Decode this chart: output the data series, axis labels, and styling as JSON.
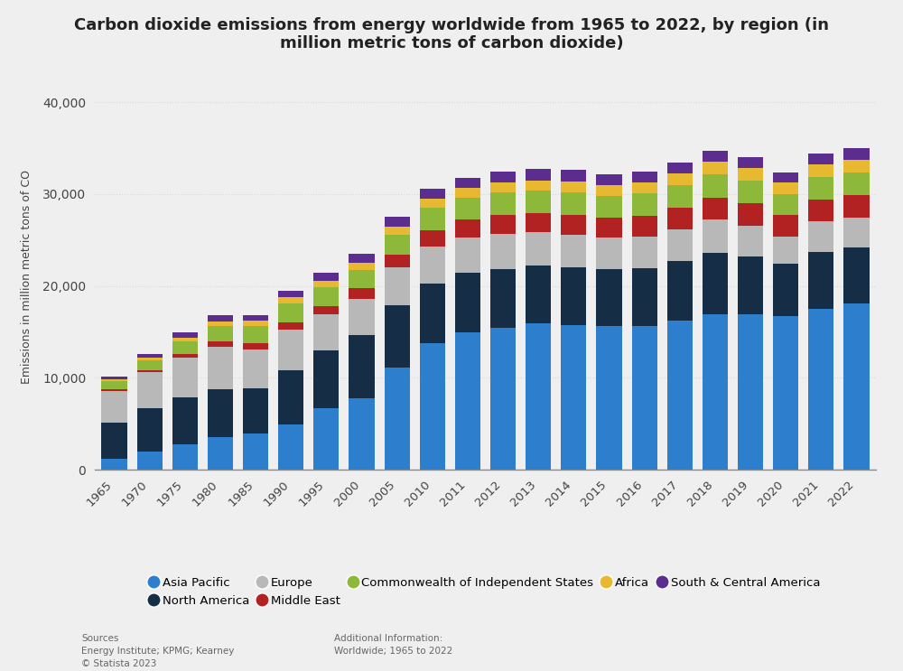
{
  "title": "Carbon dioxide emissions from energy worldwide from 1965 to 2022, by region (in\nmillion metric tons of carbon dioxide)",
  "ylabel": "Emissions in million metric tons of CO",
  "years": [
    1965,
    1970,
    1975,
    1980,
    1985,
    1990,
    1995,
    2000,
    2005,
    2010,
    2011,
    2012,
    2013,
    2014,
    2015,
    2016,
    2017,
    2018,
    2019,
    2020,
    2021,
    2022
  ],
  "regions": [
    "Asia Pacific",
    "North America",
    "Europe",
    "Middle East",
    "Commonwealth of Independent States",
    "Africa",
    "South & Central America"
  ],
  "colors": [
    "#2e7ece",
    "#162d46",
    "#b8b8b8",
    "#b22222",
    "#8db83a",
    "#e8b830",
    "#5b2d8e"
  ],
  "data": {
    "Asia Pacific": [
      1200,
      2000,
      2800,
      3500,
      3900,
      4900,
      6700,
      7800,
      11100,
      13800,
      15000,
      15400,
      15900,
      15700,
      15600,
      15600,
      16200,
      16900,
      16900,
      16700,
      17500,
      18100
    ],
    "North America": [
      3900,
      4700,
      5100,
      5300,
      5000,
      5900,
      6300,
      6900,
      6800,
      6500,
      6400,
      6400,
      6300,
      6300,
      6200,
      6300,
      6500,
      6700,
      6300,
      5700,
      6200,
      6100
    ],
    "Europe": [
      3500,
      3900,
      4300,
      4600,
      4200,
      4400,
      3900,
      3900,
      4100,
      4000,
      3900,
      3900,
      3700,
      3600,
      3500,
      3500,
      3500,
      3600,
      3400,
      3000,
      3300,
      3200
    ],
    "Middle East": [
      150,
      250,
      400,
      550,
      650,
      800,
      950,
      1150,
      1400,
      1800,
      1900,
      2000,
      2000,
      2100,
      2100,
      2200,
      2300,
      2400,
      2400,
      2300,
      2400,
      2500
    ],
    "Commonwealth of Independent States": [
      900,
      1100,
      1400,
      1700,
      1900,
      2100,
      2000,
      2000,
      2200,
      2400,
      2400,
      2500,
      2500,
      2500,
      2400,
      2500,
      2500,
      2600,
      2500,
      2300,
      2500,
      2500
    ],
    "Africa": [
      200,
      280,
      380,
      480,
      550,
      650,
      700,
      800,
      900,
      1000,
      1050,
      1100,
      1100,
      1150,
      1200,
      1200,
      1250,
      1300,
      1300,
      1250,
      1300,
      1300
    ],
    "South & Central America": [
      250,
      380,
      550,
      700,
      600,
      750,
      900,
      1000,
      1000,
      1100,
      1100,
      1150,
      1200,
      1250,
      1200,
      1200,
      1200,
      1250,
      1250,
      1100,
      1250,
      1350
    ]
  },
  "ylim": [
    0,
    42000
  ],
  "yticks": [
    0,
    10000,
    20000,
    30000,
    40000
  ],
  "ytick_labels": [
    "0",
    "10,000",
    "20,000",
    "30,000",
    "40,000"
  ],
  "background_color": "#efefef",
  "plot_bg_color": "#efefef",
  "grid_color": "#d8d8d8",
  "sources_text": "Sources\nEnergy Institute; KPMG; Kearney\n© Statista 2023",
  "additional_text": "Additional Information:\nWorldwide; 1965 to 2022",
  "title_fontsize": 13,
  "bar_width": 0.72
}
